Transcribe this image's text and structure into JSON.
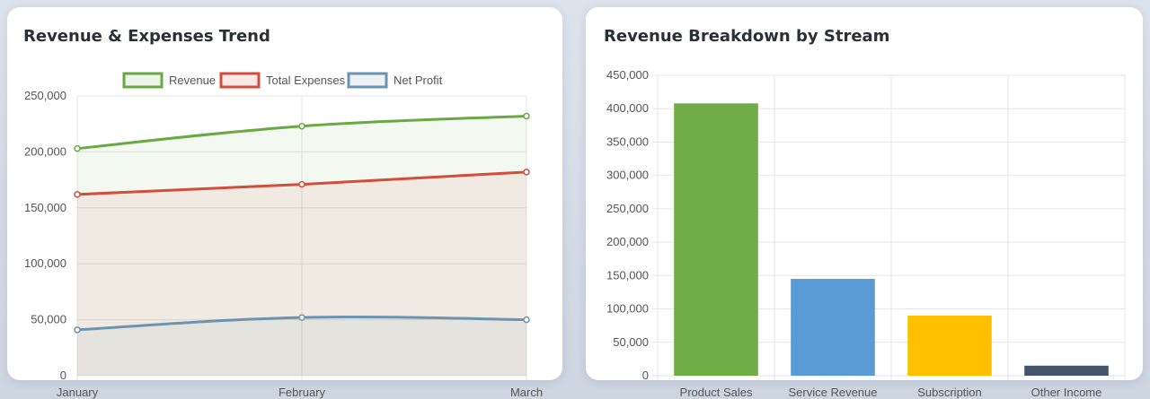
{
  "colors": {
    "revenue": "#6aa843",
    "expenses": "#d24d3a",
    "profit": "#6b93b3",
    "product_sales": "#70ad47",
    "service_revenue": "#5b9bd5",
    "subscription": "#ffc000",
    "other_income": "#44546a"
  },
  "left_card": {
    "title": "Revenue & Expenses Trend"
  },
  "right_card": {
    "title": "Revenue Breakdown by Stream"
  },
  "chart_data": [
    {
      "type": "area",
      "title": "Revenue & Expenses Trend",
      "categories": [
        "January",
        "February",
        "March"
      ],
      "series": [
        {
          "name": "Revenue",
          "values": [
            203000,
            223000,
            232000
          ]
        },
        {
          "name": "Total Expenses",
          "values": [
            162000,
            171000,
            182000
          ]
        },
        {
          "name": "Net Profit",
          "values": [
            41000,
            52000,
            50000
          ]
        }
      ],
      "ylim": [
        0,
        250000
      ],
      "y_ticks": [
        "0",
        "50,000",
        "100,000",
        "150,000",
        "200,000",
        "250,000"
      ],
      "grid": true,
      "legend": "top"
    },
    {
      "type": "bar",
      "title": "Revenue Breakdown by Stream",
      "categories": [
        "Product Sales",
        "Service Revenue",
        "Subscription",
        "Other Income"
      ],
      "values": [
        408000,
        145000,
        90000,
        15000
      ],
      "ylim": [
        0,
        450000
      ],
      "y_ticks": [
        "0",
        "50,000",
        "100,000",
        "150,000",
        "200,000",
        "250,000",
        "300,000",
        "350,000",
        "400,000",
        "450,000"
      ],
      "grid": true
    }
  ]
}
